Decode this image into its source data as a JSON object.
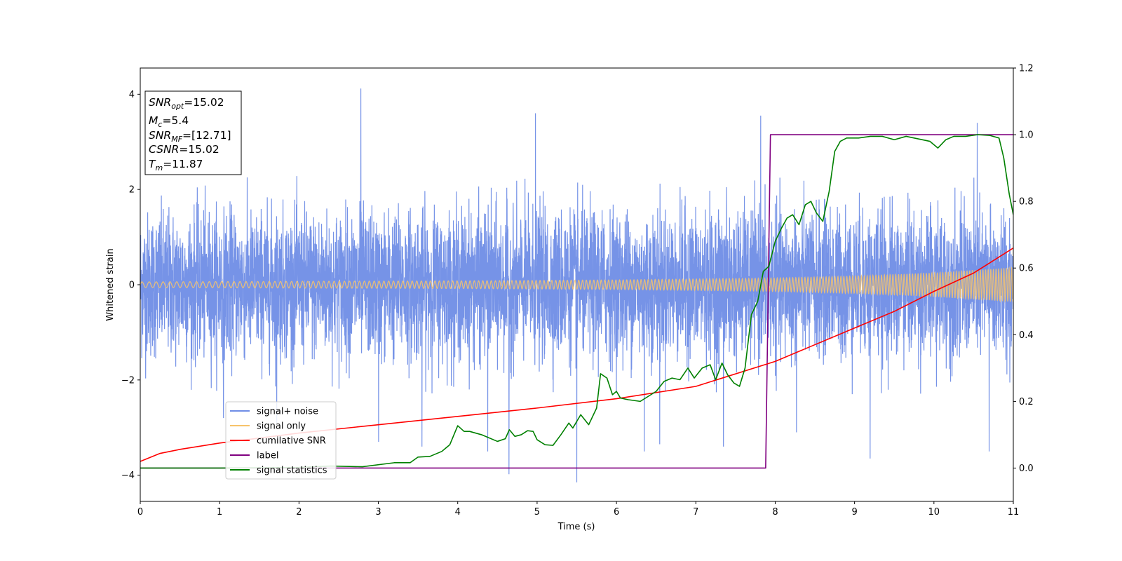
{
  "chart_data": {
    "type": "line",
    "xlabel": "Time (s)",
    "ylabel": "Whitened strain",
    "xlim": [
      0,
      11
    ],
    "ylim_left": [
      -4.55,
      4.55
    ],
    "ylim_right": [
      -0.1,
      1.2
    ],
    "x_ticks": [
      "0",
      "1",
      "2",
      "3",
      "4",
      "5",
      "6",
      "7",
      "8",
      "9",
      "10",
      "11"
    ],
    "y_left_ticks": [
      "−4",
      "−2",
      "0",
      "2",
      "4"
    ],
    "y_right_ticks": [
      "0.0",
      "0.2",
      "0.4",
      "0.6",
      "0.8",
      "1.0",
      "1.2"
    ],
    "grid": false,
    "legend_position": "lower-left",
    "info_box": {
      "snr_opt": {
        "base": "SNR",
        "sub": "opt",
        "value": "=15.02"
      },
      "mc": {
        "base": "M",
        "sub": "c",
        "value": "=5.4"
      },
      "snr_mf": {
        "base": "SNR",
        "sub": "MF",
        "value": "=[12.71]"
      },
      "csnr": {
        "base": "CSNR",
        "sub": "",
        "value": "=15.02"
      },
      "tm": {
        "base": "T",
        "sub": "m",
        "value": "=11.87"
      }
    },
    "series": [
      {
        "name": "signal+ noise",
        "color": "#6f8de6",
        "axis": "left",
        "description_stats": {
          "typical_range": [
            -2.2,
            2.2
          ],
          "max": 4.12,
          "min": -4.15
        },
        "spikes": [
          {
            "x": 2.78,
            "y": 4.12
          },
          {
            "x": 4.65,
            "y": -3.98
          },
          {
            "x": 5.5,
            "y": -4.15
          },
          {
            "x": 4.98,
            "y": 3.6
          },
          {
            "x": 7.82,
            "y": 3.55
          },
          {
            "x": 10.55,
            "y": 3.4
          },
          {
            "x": 1.05,
            "y": -2.8
          },
          {
            "x": 1.72,
            "y": -2.9
          },
          {
            "x": 3.0,
            "y": -3.3
          },
          {
            "x": 3.55,
            "y": -3.4
          },
          {
            "x": 4.38,
            "y": -3.5
          },
          {
            "x": 6.35,
            "y": -3.5
          },
          {
            "x": 6.55,
            "y": -3.35
          },
          {
            "x": 7.35,
            "y": -3.4
          },
          {
            "x": 9.2,
            "y": -3.65
          },
          {
            "x": 10.7,
            "y": -3.5
          },
          {
            "x": 8.27,
            "y": -3.1
          }
        ]
      },
      {
        "name": "signal only",
        "color": "#f7c36b",
        "axis": "left",
        "envelope": [
          {
            "x": 0,
            "a": 0.06
          },
          {
            "x": 2,
            "a": 0.07
          },
          {
            "x": 4,
            "a": 0.08
          },
          {
            "x": 6,
            "a": 0.1
          },
          {
            "x": 8,
            "a": 0.14
          },
          {
            "x": 9,
            "a": 0.18
          },
          {
            "x": 10,
            "a": 0.25
          },
          {
            "x": 11,
            "a": 0.36
          }
        ]
      },
      {
        "name": "cumilative SNR",
        "color": "#ff0000",
        "axis": "right",
        "points": [
          {
            "x": 0,
            "y": 0.02
          },
          {
            "x": 0.25,
            "y": 0.044
          },
          {
            "x": 0.5,
            "y": 0.056
          },
          {
            "x": 1,
            "y": 0.075
          },
          {
            "x": 2,
            "y": 0.105
          },
          {
            "x": 3,
            "y": 0.13
          },
          {
            "x": 4,
            "y": 0.155
          },
          {
            "x": 5,
            "y": 0.18
          },
          {
            "x": 6,
            "y": 0.208
          },
          {
            "x": 7,
            "y": 0.245
          },
          {
            "x": 8,
            "y": 0.32
          },
          {
            "x": 9,
            "y": 0.42
          },
          {
            "x": 9.5,
            "y": 0.47
          },
          {
            "x": 10,
            "y": 0.53
          },
          {
            "x": 10.5,
            "y": 0.585
          },
          {
            "x": 11,
            "y": 0.66
          }
        ]
      },
      {
        "name": "label",
        "color": "#800080",
        "axis": "right",
        "points": [
          {
            "x": 0,
            "y": 0.0
          },
          {
            "x": 7.88,
            "y": 0.0
          },
          {
            "x": 7.94,
            "y": 1.0
          },
          {
            "x": 11,
            "y": 1.0
          }
        ]
      },
      {
        "name": "signal statistics",
        "color": "#008000",
        "axis": "right",
        "points": [
          {
            "x": 0,
            "y": 0.0
          },
          {
            "x": 1.0,
            "y": 0.0
          },
          {
            "x": 2.0,
            "y": 0.002
          },
          {
            "x": 2.4,
            "y": 0.006
          },
          {
            "x": 2.8,
            "y": 0.004
          },
          {
            "x": 3.2,
            "y": 0.016
          },
          {
            "x": 3.4,
            "y": 0.016
          },
          {
            "x": 3.5,
            "y": 0.033
          },
          {
            "x": 3.65,
            "y": 0.035
          },
          {
            "x": 3.8,
            "y": 0.05
          },
          {
            "x": 3.9,
            "y": 0.07
          },
          {
            "x": 4.0,
            "y": 0.127
          },
          {
            "x": 4.08,
            "y": 0.11
          },
          {
            "x": 4.15,
            "y": 0.11
          },
          {
            "x": 4.3,
            "y": 0.1
          },
          {
            "x": 4.5,
            "y": 0.08
          },
          {
            "x": 4.6,
            "y": 0.088
          },
          {
            "x": 4.65,
            "y": 0.115
          },
          {
            "x": 4.72,
            "y": 0.095
          },
          {
            "x": 4.8,
            "y": 0.1
          },
          {
            "x": 4.88,
            "y": 0.112
          },
          {
            "x": 4.95,
            "y": 0.11
          },
          {
            "x": 5.0,
            "y": 0.085
          },
          {
            "x": 5.1,
            "y": 0.07
          },
          {
            "x": 5.2,
            "y": 0.068
          },
          {
            "x": 5.3,
            "y": 0.1
          },
          {
            "x": 5.4,
            "y": 0.135
          },
          {
            "x": 5.45,
            "y": 0.12
          },
          {
            "x": 5.55,
            "y": 0.16
          },
          {
            "x": 5.65,
            "y": 0.13
          },
          {
            "x": 5.75,
            "y": 0.18
          },
          {
            "x": 5.8,
            "y": 0.283
          },
          {
            "x": 5.88,
            "y": 0.27
          },
          {
            "x": 5.95,
            "y": 0.22
          },
          {
            "x": 6.0,
            "y": 0.23
          },
          {
            "x": 6.05,
            "y": 0.21
          },
          {
            "x": 6.15,
            "y": 0.205
          },
          {
            "x": 6.3,
            "y": 0.2
          },
          {
            "x": 6.4,
            "y": 0.215
          },
          {
            "x": 6.5,
            "y": 0.23
          },
          {
            "x": 6.6,
            "y": 0.26
          },
          {
            "x": 6.7,
            "y": 0.27
          },
          {
            "x": 6.8,
            "y": 0.265
          },
          {
            "x": 6.9,
            "y": 0.3
          },
          {
            "x": 6.98,
            "y": 0.27
          },
          {
            "x": 7.08,
            "y": 0.3
          },
          {
            "x": 7.18,
            "y": 0.31
          },
          {
            "x": 7.25,
            "y": 0.265
          },
          {
            "x": 7.33,
            "y": 0.315
          },
          {
            "x": 7.4,
            "y": 0.28
          },
          {
            "x": 7.48,
            "y": 0.255
          },
          {
            "x": 7.55,
            "y": 0.245
          },
          {
            "x": 7.62,
            "y": 0.3
          },
          {
            "x": 7.7,
            "y": 0.46
          },
          {
            "x": 7.78,
            "y": 0.5
          },
          {
            "x": 7.85,
            "y": 0.59
          },
          {
            "x": 7.92,
            "y": 0.605
          },
          {
            "x": 8.0,
            "y": 0.68
          },
          {
            "x": 8.08,
            "y": 0.72
          },
          {
            "x": 8.15,
            "y": 0.75
          },
          {
            "x": 8.22,
            "y": 0.76
          },
          {
            "x": 8.3,
            "y": 0.73
          },
          {
            "x": 8.38,
            "y": 0.79
          },
          {
            "x": 8.45,
            "y": 0.8
          },
          {
            "x": 8.52,
            "y": 0.765
          },
          {
            "x": 8.6,
            "y": 0.74
          },
          {
            "x": 8.68,
            "y": 0.83
          },
          {
            "x": 8.75,
            "y": 0.95
          },
          {
            "x": 8.82,
            "y": 0.98
          },
          {
            "x": 8.9,
            "y": 0.99
          },
          {
            "x": 9.05,
            "y": 0.99
          },
          {
            "x": 9.2,
            "y": 0.995
          },
          {
            "x": 9.35,
            "y": 0.995
          },
          {
            "x": 9.5,
            "y": 0.985
          },
          {
            "x": 9.65,
            "y": 0.995
          },
          {
            "x": 9.75,
            "y": 0.99
          },
          {
            "x": 9.85,
            "y": 0.985
          },
          {
            "x": 9.95,
            "y": 0.98
          },
          {
            "x": 10.05,
            "y": 0.96
          },
          {
            "x": 10.15,
            "y": 0.985
          },
          {
            "x": 10.25,
            "y": 0.995
          },
          {
            "x": 10.4,
            "y": 0.995
          },
          {
            "x": 10.55,
            "y": 1.0
          },
          {
            "x": 10.7,
            "y": 0.998
          },
          {
            "x": 10.82,
            "y": 0.99
          },
          {
            "x": 10.88,
            "y": 0.93
          },
          {
            "x": 10.95,
            "y": 0.82
          },
          {
            "x": 11.0,
            "y": 0.76
          }
        ]
      }
    ]
  }
}
